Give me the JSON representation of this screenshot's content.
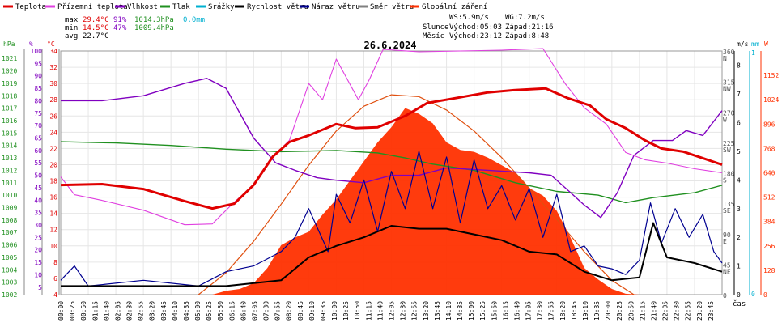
{
  "chart_data": {
    "type": "line",
    "title": "26.6.2024",
    "xlabel": "čas",
    "legend": [
      {
        "name": "Teplota",
        "color": "#e00000"
      },
      {
        "name": "Přízemní teplota",
        "color": "#e040e0"
      },
      {
        "name": "Vlhkost",
        "color": "#8000c0"
      },
      {
        "name": "Tlak",
        "color": "#209020"
      },
      {
        "name": "Srážky",
        "color": "#00b0d0"
      },
      {
        "name": "Rychlost větru",
        "color": "#000000"
      },
      {
        "name": "Náraz větru",
        "color": "#000090"
      },
      {
        "name": "Směr větru",
        "color": "#808080"
      },
      {
        "name": "Globální záření",
        "color": "#ff3000"
      }
    ],
    "stats": {
      "max": {
        "label": "max",
        "temp": "29.4°C",
        "hum": "91%",
        "press": "1014.3hPa",
        "rain": "0.0mm"
      },
      "min": {
        "label": "min",
        "temp": "14.5°C",
        "hum": "47%",
        "press": "1009.4hPa"
      },
      "avg": {
        "label": "avg",
        "temp": "22.7°C"
      },
      "wind": {
        "ws": "WS:5.9m/s",
        "wg": "WG:7.2m/s"
      },
      "sun": {
        "label": "Slunce",
        "rise": "Východ:05:03",
        "set": "Západ:21:16"
      },
      "moon": {
        "label": "Měsíc",
        "rise": "Východ:23:12",
        "set": "Západ:8:48"
      }
    },
    "axes": {
      "hpa": {
        "unit": "hPa",
        "ticks": [
          "1021",
          "1020",
          "1019",
          "1018",
          "1017",
          "1016",
          "1015",
          "1014",
          "1013",
          "1012",
          "1011",
          "1010",
          "1009",
          "1008",
          "1007",
          "1006",
          "1005",
          "1004",
          "1003",
          "1002"
        ]
      },
      "pct": {
        "unit": "%",
        "ticks": [
          "100",
          "95",
          "90",
          "85",
          "80",
          "75",
          "70",
          "65",
          "60",
          "55",
          "50",
          "45",
          "40",
          "35",
          "30",
          "25",
          "20",
          "15",
          "10",
          "5"
        ]
      },
      "temp": {
        "unit": "°C",
        "ticks": [
          "34",
          "32",
          "30",
          "28",
          "26",
          "24",
          "22",
          "20",
          "18",
          "16",
          "14",
          "12",
          "10",
          "8",
          "6",
          "4"
        ]
      },
      "ms": {
        "unit": "m/s",
        "ticks": [
          "8",
          "7",
          "6",
          "5",
          "4",
          "3",
          "2",
          "1",
          "0"
        ]
      },
      "dir": {
        "ticks": [
          "360",
          "N",
          "315",
          "NW",
          "270",
          "W",
          "225",
          "SW",
          "180",
          "S",
          "135",
          "SE",
          "90",
          "E",
          "45",
          "NE",
          "0"
        ]
      },
      "mm": {
        "unit": "mm",
        "ticks": [
          "1",
          "0"
        ]
      },
      "w": {
        "unit": "W",
        "ticks": [
          "1152",
          "1024",
          "896",
          "768",
          "640",
          "512",
          "384",
          "256",
          "128",
          "0"
        ]
      }
    },
    "time_labels": [
      "00:00",
      "00:25",
      "00:50",
      "01:15",
      "01:40",
      "02:05",
      "02:30",
      "02:55",
      "03:20",
      "03:45",
      "04:10",
      "04:35",
      "05:00",
      "05:25",
      "05:50",
      "06:15",
      "06:40",
      "07:05",
      "07:30",
      "07:55",
      "08:20",
      "08:45",
      "09:10",
      "09:35",
      "10:00",
      "10:25",
      "10:50",
      "11:15",
      "11:40",
      "12:05",
      "12:30",
      "12:55",
      "13:20",
      "13:45",
      "14:10",
      "14:35",
      "15:00",
      "15:25",
      "15:50",
      "16:15",
      "16:40",
      "17:05",
      "17:30",
      "17:55",
      "18:20",
      "18:45",
      "19:10",
      "19:35",
      "20:00",
      "20:25",
      "20:50",
      "21:15",
      "21:40",
      "22:05",
      "22:30",
      "22:55",
      "23:20",
      "23:45"
    ],
    "series": {
      "temperature_c": [
        [
          0,
          17.5
        ],
        [
          1.5,
          17.6
        ],
        [
          3,
          17.0
        ],
        [
          4.5,
          15.5
        ],
        [
          5.5,
          14.6
        ],
        [
          6.3,
          15.2
        ],
        [
          7,
          17.5
        ],
        [
          7.7,
          21.0
        ],
        [
          8.3,
          22.8
        ],
        [
          9,
          23.6
        ],
        [
          10,
          25.0
        ],
        [
          10.7,
          24.5
        ],
        [
          11.5,
          24.6
        ],
        [
          12.5,
          26.0
        ],
        [
          13.3,
          27.6
        ],
        [
          14.5,
          28.3
        ],
        [
          15.5,
          28.9
        ],
        [
          16.5,
          29.2
        ],
        [
          17.6,
          29.4
        ],
        [
          18.4,
          28.2
        ],
        [
          19.2,
          27.3
        ],
        [
          19.8,
          25.6
        ],
        [
          20.5,
          24.5
        ],
        [
          21.2,
          23.0
        ],
        [
          21.8,
          22.0
        ],
        [
          22.6,
          21.6
        ],
        [
          23.3,
          20.8
        ],
        [
          24,
          20.0
        ]
      ],
      "ground_temp_c": [
        [
          0,
          18.5
        ],
        [
          0.5,
          16.3
        ],
        [
          1.5,
          15.6
        ],
        [
          3,
          14.4
        ],
        [
          4.5,
          12.6
        ],
        [
          5.5,
          12.7
        ],
        [
          6.3,
          15.4
        ],
        [
          7,
          17.5
        ],
        [
          7.7,
          21.0
        ],
        [
          8.3,
          23.0
        ],
        [
          9,
          30.0
        ],
        [
          9.5,
          28.0
        ],
        [
          10,
          33.0
        ],
        [
          10.8,
          28.0
        ],
        [
          11.2,
          30.5
        ],
        [
          11.7,
          34.2
        ],
        [
          13,
          33.9
        ],
        [
          14.5,
          34.0
        ],
        [
          16,
          34.1
        ],
        [
          17.5,
          34.3
        ],
        [
          18.3,
          30.0
        ],
        [
          19,
          27.0
        ],
        [
          19.8,
          25.0
        ],
        [
          20.5,
          21.5
        ],
        [
          21.2,
          20.6
        ],
        [
          22,
          20.2
        ],
        [
          23,
          19.5
        ],
        [
          24,
          19.0
        ]
      ],
      "humidity_pct": [
        [
          0,
          80
        ],
        [
          1.5,
          80
        ],
        [
          3,
          82
        ],
        [
          4.5,
          87
        ],
        [
          5.3,
          89
        ],
        [
          6,
          85
        ],
        [
          7,
          65
        ],
        [
          7.8,
          55
        ],
        [
          8.5,
          52
        ],
        [
          9.3,
          49
        ],
        [
          10,
          48
        ],
        [
          11,
          47
        ],
        [
          12,
          50
        ],
        [
          13,
          50
        ],
        [
          14,
          53
        ],
        [
          15.5,
          52
        ],
        [
          17,
          51
        ],
        [
          17.8,
          50
        ],
        [
          18.3,
          45
        ],
        [
          19,
          38
        ],
        [
          19.6,
          33
        ],
        [
          20.2,
          43
        ],
        [
          20.8,
          58
        ],
        [
          21.5,
          64
        ],
        [
          22.2,
          64
        ],
        [
          22.7,
          68
        ],
        [
          23.3,
          66
        ],
        [
          24,
          76
        ]
      ],
      "pressure_hpa": [
        [
          0,
          1014.3
        ],
        [
          2,
          1014.2
        ],
        [
          4,
          1014.0
        ],
        [
          6,
          1013.7
        ],
        [
          8,
          1013.5
        ],
        [
          10,
          1013.6
        ],
        [
          11.5,
          1013.4
        ],
        [
          12.5,
          1013.0
        ],
        [
          13.5,
          1012.5
        ],
        [
          15,
          1012.0
        ],
        [
          16.5,
          1011.0
        ],
        [
          18,
          1010.3
        ],
        [
          19.5,
          1010.0
        ],
        [
          20.5,
          1009.4
        ],
        [
          21.5,
          1009.8
        ],
        [
          23,
          1010.2
        ],
        [
          24,
          1010.8
        ]
      ],
      "wind_avg_ms": [
        [
          0,
          0.3
        ],
        [
          3,
          0.3
        ],
        [
          5,
          0.3
        ],
        [
          6,
          0.3
        ],
        [
          8,
          0.5
        ],
        [
          9,
          1.3
        ],
        [
          10,
          1.7
        ],
        [
          11,
          2.0
        ],
        [
          12,
          2.4
        ],
        [
          13,
          2.3
        ],
        [
          14,
          2.3
        ],
        [
          15,
          2.1
        ],
        [
          16,
          1.9
        ],
        [
          17,
          1.5
        ],
        [
          18,
          1.4
        ],
        [
          19,
          0.8
        ],
        [
          20,
          0.5
        ],
        [
          21,
          0.6
        ],
        [
          21.5,
          2.5
        ],
        [
          22,
          1.3
        ],
        [
          23,
          1.1
        ],
        [
          24,
          0.8
        ]
      ],
      "wind_gust_ms": [
        [
          0,
          0.5
        ],
        [
          0.5,
          1.0
        ],
        [
          1,
          0.3
        ],
        [
          3,
          0.5
        ],
        [
          5,
          0.3
        ],
        [
          6,
          0.8
        ],
        [
          7,
          1.0
        ],
        [
          8,
          1.5
        ],
        [
          8.5,
          2.0
        ],
        [
          9,
          3.0
        ],
        [
          9.7,
          1.5
        ],
        [
          10,
          3.5
        ],
        [
          10.5,
          2.5
        ],
        [
          11,
          4.0
        ],
        [
          11.5,
          2.2
        ],
        [
          12,
          4.3
        ],
        [
          12.5,
          3.0
        ],
        [
          13,
          5.0
        ],
        [
          13.5,
          3.0
        ],
        [
          14,
          4.8
        ],
        [
          14.5,
          2.5
        ],
        [
          15,
          4.7
        ],
        [
          15.5,
          3.0
        ],
        [
          16,
          3.8
        ],
        [
          16.5,
          2.6
        ],
        [
          17,
          3.7
        ],
        [
          17.5,
          2.0
        ],
        [
          18,
          3.5
        ],
        [
          18.5,
          1.5
        ],
        [
          19,
          1.7
        ],
        [
          19.5,
          1.0
        ],
        [
          20,
          0.9
        ],
        [
          20.5,
          0.7
        ],
        [
          21,
          1.2
        ],
        [
          21.4,
          3.2
        ],
        [
          21.8,
          1.8
        ],
        [
          22.3,
          3.0
        ],
        [
          22.8,
          2.0
        ],
        [
          23.3,
          2.8
        ],
        [
          23.7,
          1.5
        ],
        [
          24,
          1.1
        ]
      ],
      "radiation_wm2": [
        [
          0,
          0
        ],
        [
          5.5,
          0
        ],
        [
          6,
          20
        ],
        [
          6.5,
          30
        ],
        [
          7,
          60
        ],
        [
          7.5,
          140
        ],
        [
          8,
          260
        ],
        [
          8.5,
          300
        ],
        [
          9,
          330
        ],
        [
          9.5,
          420
        ],
        [
          10,
          500
        ],
        [
          10.5,
          600
        ],
        [
          11,
          700
        ],
        [
          11.5,
          800
        ],
        [
          12,
          880
        ],
        [
          12.5,
          980
        ],
        [
          13,
          950
        ],
        [
          13.5,
          900
        ],
        [
          14,
          800
        ],
        [
          14.5,
          760
        ],
        [
          15,
          750
        ],
        [
          15.5,
          720
        ],
        [
          16,
          680
        ],
        [
          16.5,
          640
        ],
        [
          17,
          560
        ],
        [
          17.5,
          520
        ],
        [
          18,
          440
        ],
        [
          18.5,
          300
        ],
        [
          19,
          140
        ],
        [
          19.5,
          80
        ],
        [
          20,
          30
        ],
        [
          20.5,
          5
        ],
        [
          21,
          0
        ],
        [
          24,
          0
        ]
      ],
      "clear_sky_radiation_wm2": [
        [
          5.0,
          0
        ],
        [
          6,
          115
        ],
        [
          7,
          280
        ],
        [
          8,
          475
        ],
        [
          9,
          680
        ],
        [
          10,
          860
        ],
        [
          11,
          990
        ],
        [
          12,
          1050
        ],
        [
          13,
          1040
        ],
        [
          14,
          970
        ],
        [
          15,
          860
        ],
        [
          16,
          720
        ],
        [
          17,
          560
        ],
        [
          18,
          395
        ],
        [
          19,
          225
        ],
        [
          20,
          75
        ],
        [
          20.8,
          0
        ]
      ]
    }
  }
}
